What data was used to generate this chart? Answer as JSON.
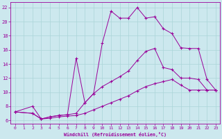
{
  "xlabel": "Windchill (Refroidissement éolien,°C)",
  "background_color": "#cce8ee",
  "line_color": "#990099",
  "grid_color": "#aad4d8",
  "xlim": [
    -0.5,
    23.5
  ],
  "ylim": [
    5.5,
    22.8
  ],
  "xticks": [
    0,
    1,
    2,
    3,
    4,
    5,
    6,
    7,
    8,
    9,
    10,
    11,
    12,
    13,
    14,
    15,
    16,
    17,
    18,
    19,
    20,
    21,
    22,
    23
  ],
  "yticks": [
    6,
    8,
    10,
    12,
    14,
    16,
    18,
    20,
    22
  ],
  "line1_x": [
    0,
    2,
    3,
    4,
    5,
    6,
    7,
    8,
    9,
    10,
    11,
    12,
    13,
    14,
    15,
    16,
    17,
    18,
    19,
    20,
    21,
    22,
    23
  ],
  "line1_y": [
    7.2,
    8.0,
    6.2,
    6.5,
    6.7,
    6.8,
    14.8,
    8.5,
    9.8,
    17.0,
    21.5,
    20.5,
    20.5,
    22.0,
    20.5,
    20.7,
    19.0,
    18.3,
    16.3,
    16.2,
    16.2,
    11.8,
    10.3
  ],
  "line2_x": [
    0,
    2,
    3,
    4,
    5,
    6,
    7,
    8,
    9,
    10,
    11,
    12,
    13,
    14,
    15,
    16,
    17,
    18,
    19,
    20,
    21,
    22,
    23
  ],
  "line2_y": [
    7.2,
    7.0,
    6.2,
    6.5,
    6.7,
    6.8,
    7.0,
    8.5,
    9.8,
    10.8,
    11.5,
    12.2,
    13.0,
    14.5,
    15.8,
    16.2,
    13.5,
    13.2,
    12.0,
    12.0,
    11.8,
    10.3,
    10.3
  ],
  "line3_x": [
    0,
    2,
    3,
    4,
    5,
    6,
    7,
    8,
    9,
    10,
    11,
    12,
    13,
    14,
    15,
    16,
    17,
    18,
    19,
    20,
    21,
    22,
    23
  ],
  "line3_y": [
    7.2,
    7.0,
    6.2,
    6.3,
    6.5,
    6.6,
    6.7,
    7.0,
    7.5,
    8.0,
    8.5,
    9.0,
    9.5,
    10.2,
    10.8,
    11.2,
    11.5,
    11.8,
    11.0,
    10.3,
    10.3,
    10.3,
    10.3
  ]
}
